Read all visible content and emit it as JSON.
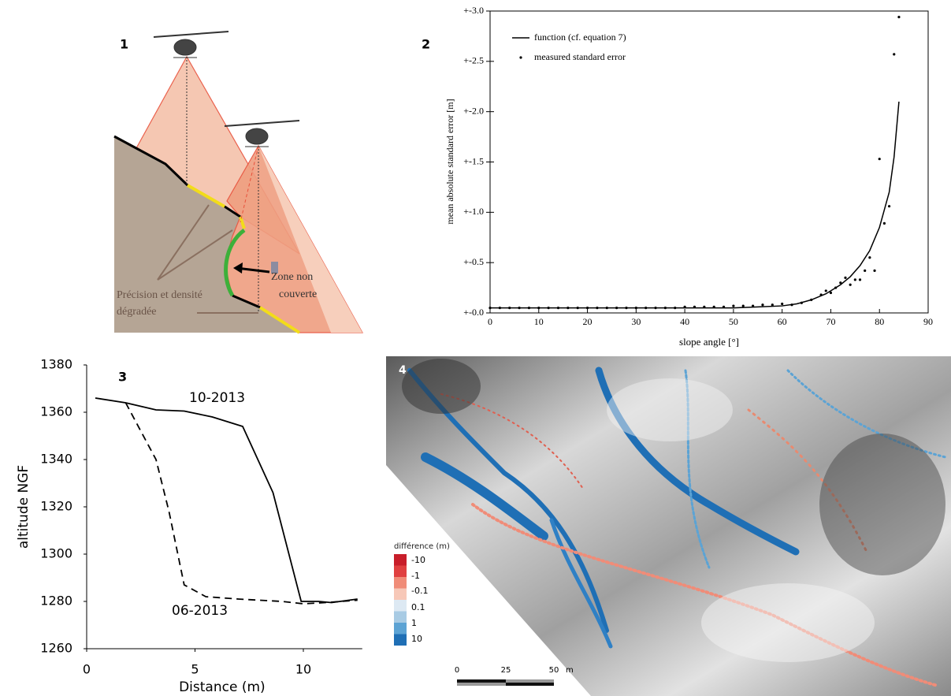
{
  "diagram": {
    "panel_label": "1",
    "precision_lines": [
      "Précision et densité",
      "dégradée"
    ],
    "zone_lines": [
      "Zone non",
      "couverte"
    ]
  },
  "chart_data": [
    {
      "type": "line",
      "panel_label": "2",
      "x_label": "slope angle [°]",
      "y_label": "mean absolute standard error [m]",
      "xlim": [
        0,
        90
      ],
      "ylim": [
        0,
        3
      ],
      "xticks": [
        0,
        10,
        20,
        30,
        40,
        50,
        60,
        70,
        80,
        90
      ],
      "yticks": [
        {
          "value": 0,
          "label": "+-0.0"
        },
        {
          "value": 0.5,
          "label": "+-0.5"
        },
        {
          "value": 1,
          "label": "+-1.0"
        },
        {
          "value": 1.5,
          "label": "+-1.5"
        },
        {
          "value": 2,
          "label": "+-2.0"
        },
        {
          "value": 2.5,
          "label": "+-2.5"
        },
        {
          "value": 3,
          "label": "+-3.0"
        }
      ],
      "legend": "upper left",
      "frame": true,
      "series": [
        {
          "name": "function (cf. equation 7)",
          "kind": "line",
          "color": "#000000",
          "x": [
            0,
            10,
            20,
            30,
            40,
            50,
            55,
            60,
            63,
            66,
            69,
            72,
            74,
            76,
            78,
            80,
            82,
            83,
            84
          ],
          "values": [
            0.05,
            0.05,
            0.05,
            0.05,
            0.05,
            0.05,
            0.06,
            0.07,
            0.09,
            0.13,
            0.19,
            0.28,
            0.36,
            0.47,
            0.62,
            0.85,
            1.2,
            1.55,
            2.1
          ]
        },
        {
          "name": "measured standard error",
          "kind": "points",
          "color": "#000000",
          "x": [
            0,
            2,
            4,
            6,
            8,
            10,
            12,
            14,
            16,
            18,
            20,
            22,
            24,
            26,
            28,
            30,
            32,
            34,
            36,
            38,
            40,
            42,
            44,
            46,
            48,
            50,
            52,
            54,
            56,
            58,
            60,
            62,
            64,
            66,
            68,
            69,
            70,
            71,
            72,
            73,
            74,
            75,
            76,
            77,
            78,
            79,
            80,
            81,
            82,
            83,
            84
          ],
          "values": [
            0.05,
            0.05,
            0.05,
            0.05,
            0.05,
            0.05,
            0.05,
            0.05,
            0.05,
            0.05,
            0.05,
            0.05,
            0.05,
            0.05,
            0.05,
            0.05,
            0.05,
            0.05,
            0.05,
            0.05,
            0.06,
            0.06,
            0.06,
            0.06,
            0.06,
            0.07,
            0.07,
            0.07,
            0.08,
            0.08,
            0.09,
            0.08,
            0.1,
            0.13,
            0.18,
            0.22,
            0.2,
            0.25,
            0.3,
            0.35,
            0.28,
            0.33,
            0.33,
            0.42,
            0.55,
            0.42,
            1.53,
            0.89,
            1.06,
            2.57,
            2.94
          ]
        }
      ]
    },
    {
      "type": "line",
      "panel_label": "3",
      "x_label": "Distance (m)",
      "y_label": "altitude NGF",
      "xlim": [
        0,
        12.5
      ],
      "ylim": [
        1260,
        1380
      ],
      "xticks": [
        0,
        5,
        10
      ],
      "yticks": [
        1260,
        1280,
        1300,
        1320,
        1340,
        1360,
        1380
      ],
      "legend": false,
      "frame": false,
      "series": [
        {
          "name": "10-2013",
          "kind": "line",
          "color": "#000000",
          "x": [
            0.4,
            1.8,
            3.2,
            4.5,
            5.8,
            7.2,
            8.6,
            9.9,
            10.7,
            11.3,
            12.5
          ],
          "values": [
            1366,
            1364,
            1361,
            1360.5,
            1358,
            1354,
            1326,
            1280,
            1280,
            1279.5,
            1281
          ]
        },
        {
          "name": "06-2013",
          "kind": "line",
          "dashed": true,
          "color": "#000000",
          "x": [
            1.8,
            2.5,
            3.2,
            3.8,
            4.5,
            5.5,
            7,
            9,
            10,
            11,
            12.5
          ],
          "values": [
            1364,
            1352,
            1340,
            1318,
            1287,
            1282,
            1281,
            1280,
            1279,
            1279.5,
            1280.5
          ]
        }
      ]
    }
  ],
  "map": {
    "panel_label": "4",
    "legend_title": "différence (m)",
    "legend_labels": [
      "-10",
      "-1",
      "-0.1",
      "0.1",
      "1",
      "10"
    ],
    "scale_labels": [
      "0",
      "25",
      "50"
    ],
    "scale_unit": "m"
  }
}
